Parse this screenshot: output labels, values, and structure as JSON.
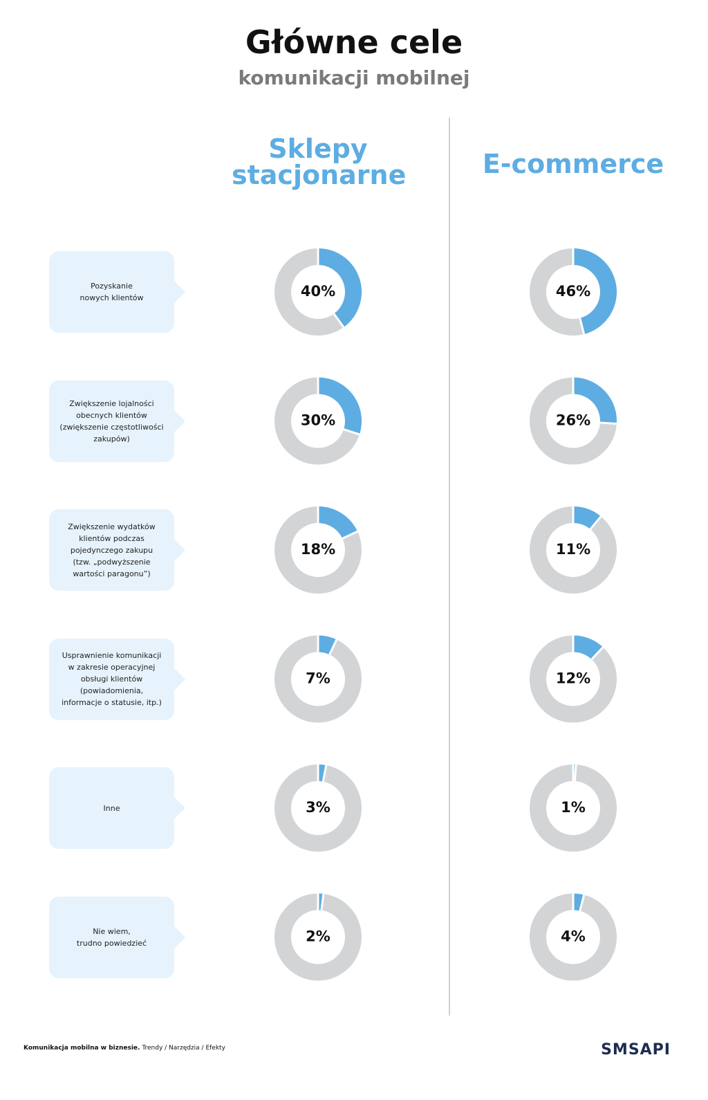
{
  "chart_data": {
    "type": "donut",
    "title": "Główne cele",
    "subtitle": "komunikacji mobilnej",
    "categories": [
      "Pozyskanie\nnowych klientów",
      "Zwiększenie lojalności\nobecnych klientów\n(zwiększenie częstotliwości\nzakupów)",
      "Zwiększenie wydatków\nklientów podczas\npojedynczego zakupu\n(tzw. „podwyższenie\nwartości paragonu”)",
      "Usprawnienie komunikacji\nw zakresie operacyjnej\nobsługi klientów\n(powiadomienia,\ninformacje o statusie, itp.)",
      "Inne",
      "Nie wiem,\ntrudno powiedzieć"
    ],
    "series": [
      {
        "name": "Sklepy stacjonarne",
        "color": "#5dade2",
        "values": [
          40,
          30,
          18,
          7,
          3,
          2
        ],
        "value_labels": [
          "40%",
          "30%",
          "18%",
          "7%",
          "3%",
          "2%"
        ]
      },
      {
        "name": "E-commerce",
        "color": "#5dade2",
        "values": [
          46,
          26,
          11,
          12,
          1,
          4
        ],
        "value_labels": [
          "46%",
          "26%",
          "11%",
          "12%",
          "1%",
          "4%"
        ]
      }
    ],
    "track_color": "#d3d4d6"
  },
  "footer": {
    "title": "Komunikacja mobilna w biznesie.",
    "subtitle": " Trendy / Narzędzia / Efekty"
  },
  "logo": "SMSAPI"
}
